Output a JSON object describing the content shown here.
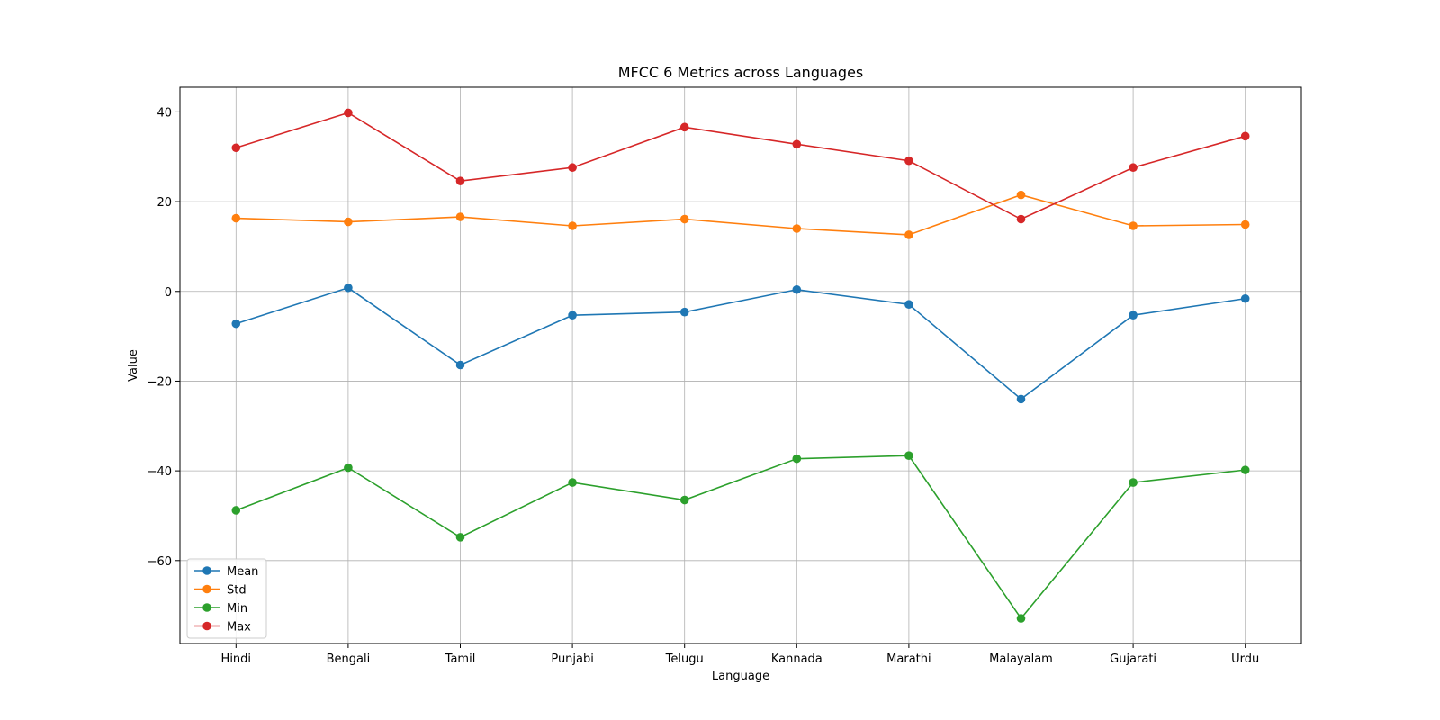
{
  "chart_data": {
    "type": "line",
    "title": "MFCC 6 Metrics across Languages",
    "xlabel": "Language",
    "ylabel": "Value",
    "categories": [
      "Hindi",
      "Bengali",
      "Tamil",
      "Punjabi",
      "Telugu",
      "Kannada",
      "Marathi",
      "Malayalam",
      "Gujarati",
      "Urdu"
    ],
    "ylim": [
      -78.5,
      45.5
    ],
    "yticks": [
      40,
      20,
      0,
      -20,
      -40,
      -60
    ],
    "ytick_labels": [
      "40",
      "20",
      "0",
      "−20",
      "−40",
      "−60"
    ],
    "grid": true,
    "legend_position": "lower-left",
    "series": [
      {
        "name": "Mean",
        "color": "#1f77b4",
        "values": [
          -7.2,
          0.8,
          -16.4,
          -5.3,
          -4.6,
          0.4,
          -2.9,
          -24.0,
          -5.3,
          -1.6
        ]
      },
      {
        "name": "Std",
        "color": "#ff7f0e",
        "values": [
          16.3,
          15.5,
          16.6,
          14.6,
          16.1,
          14.0,
          12.6,
          21.5,
          14.6,
          14.9
        ]
      },
      {
        "name": "Min",
        "color": "#2ca02c",
        "values": [
          -48.8,
          -39.3,
          -54.8,
          -42.6,
          -46.5,
          -37.3,
          -36.6,
          -72.9,
          -42.6,
          -39.8
        ]
      },
      {
        "name": "Max",
        "color": "#d62728",
        "values": [
          32.0,
          39.8,
          24.6,
          27.6,
          36.6,
          32.8,
          29.1,
          16.1,
          27.6,
          34.6
        ]
      }
    ]
  }
}
